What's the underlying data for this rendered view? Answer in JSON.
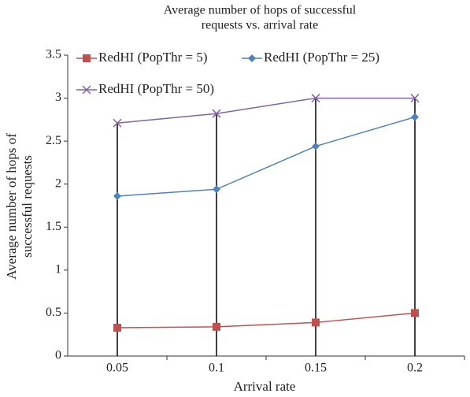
{
  "chart_data": {
    "type": "line",
    "title": [
      "Average number of hops of successful",
      "requests vs. arrival rate"
    ],
    "x_label": "Arrival rate",
    "y_label": [
      "Average number of hops of",
      "successful requests"
    ],
    "categories": [
      "0.05",
      "0.1",
      "0.15",
      "0.2"
    ],
    "series": [
      {
        "name": "RedHI (PopThr = 5)",
        "color": "#c0504d",
        "marker": "square",
        "values": [
          0.33,
          0.34,
          0.39,
          0.5
        ]
      },
      {
        "name": "RedHI (PopThr = 25)",
        "color": "#4f81bd",
        "marker": "diamond",
        "values": [
          1.86,
          1.94,
          2.44,
          2.78
        ]
      },
      {
        "name": "RedHI (PopThr = 50)",
        "color": "#8064a2",
        "marker": "x",
        "values": [
          2.71,
          2.82,
          3,
          3
        ]
      }
    ],
    "ylim": [
      0,
      3.5
    ],
    "yticks": [
      0,
      0.5,
      1,
      1.5,
      2,
      2.5,
      3,
      3.5
    ],
    "drop_lines": true,
    "grid": false,
    "legend": "top"
  }
}
